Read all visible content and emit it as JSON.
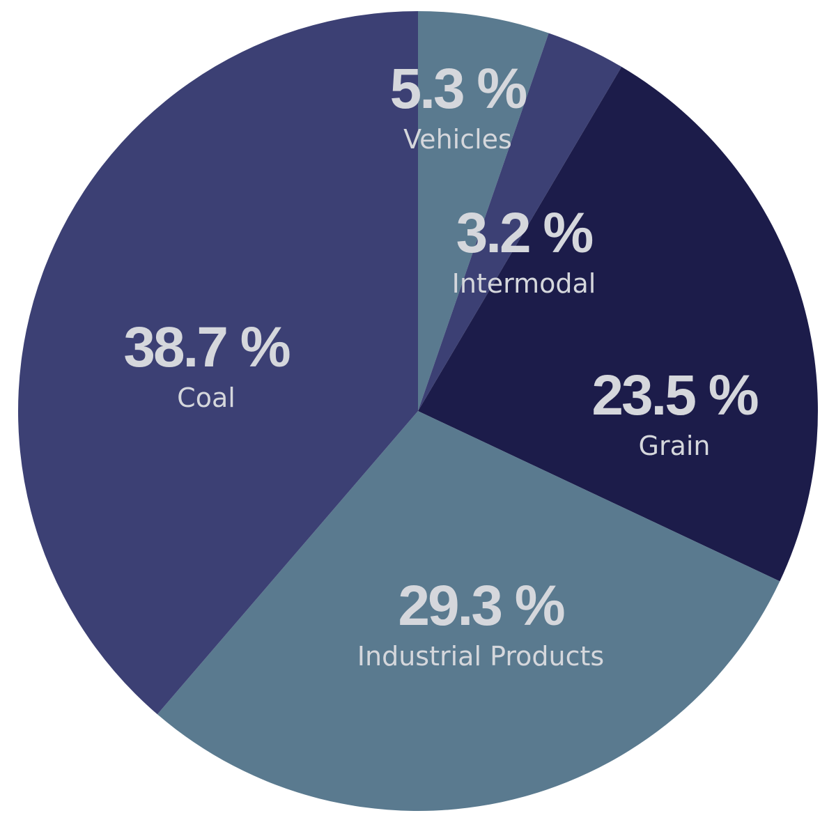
{
  "chart_data": {
    "type": "pie",
    "title": "",
    "start_angle_deg": 0,
    "direction": "clockwise",
    "legend": "none",
    "slices": [
      {
        "label": "Vehicles",
        "value": 5.3,
        "display": "5.3 %",
        "color": "#5a7a8f"
      },
      {
        "label": "Intermodal",
        "value": 3.2,
        "display": "3.2 %",
        "color": "#3c4074"
      },
      {
        "label": "Grain",
        "value": 23.5,
        "display": "23.5 %",
        "color": "#1c1c4a"
      },
      {
        "label": "Industrial Products",
        "value": 29.3,
        "display": "29.3 %",
        "color": "#5a7a8f"
      },
      {
        "label": "Coal",
        "value": 38.7,
        "display": "38.7 %",
        "color": "#3c4074"
      }
    ]
  }
}
